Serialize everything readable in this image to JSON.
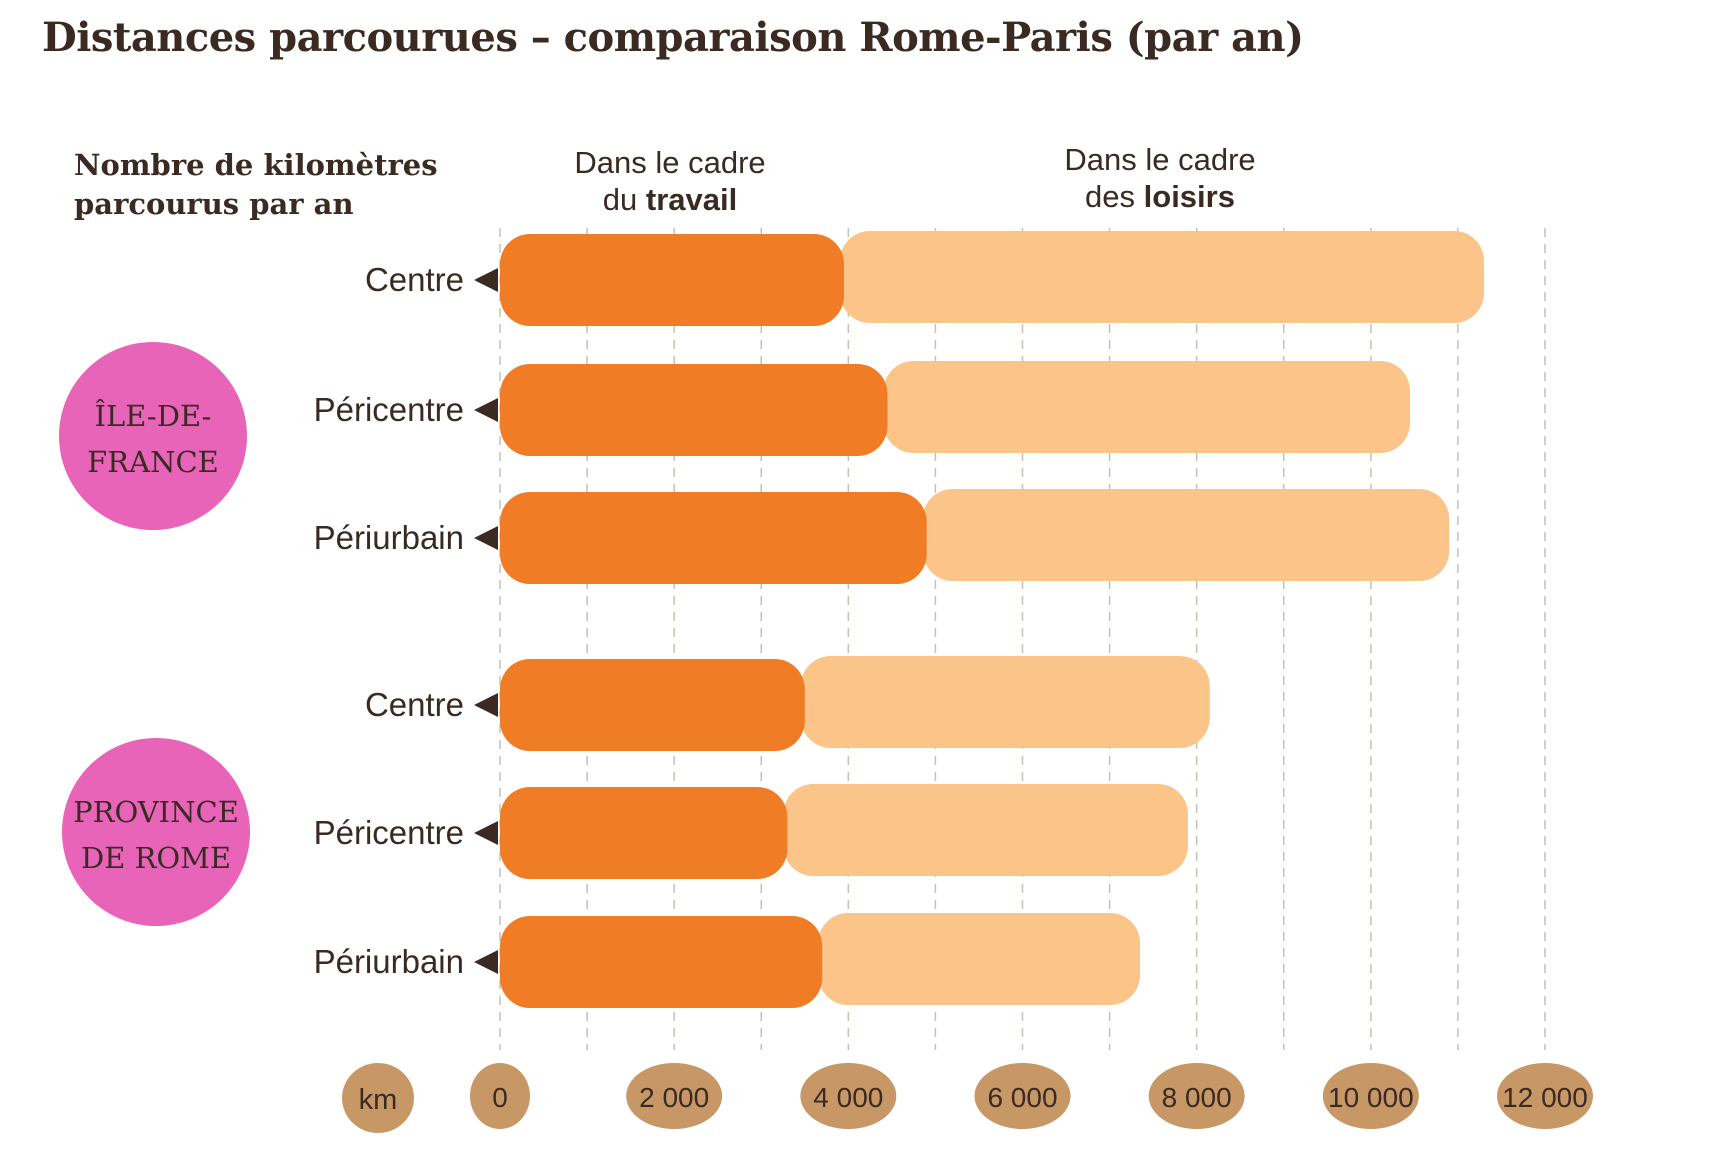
{
  "title": "Distances parcourues – comparaison Rome-Paris (par an)",
  "ylabel_lines": [
    "Nombre de kilomètres",
    "parcourus par an"
  ],
  "headers": {
    "work": {
      "line1": "Dans le cadre",
      "line2_prefix": "du ",
      "line2_bold": "travail"
    },
    "leisure": {
      "line1": "Dans le cadre",
      "line2_prefix": "des ",
      "line2_bold": "loisirs"
    }
  },
  "colors": {
    "work": "#f07d25",
    "leisure": "#fbc58a",
    "region_circle": "#e864b8",
    "axis_pill": "#c79766",
    "text": "#3a2a22",
    "gridline": "#c9bfb4"
  },
  "chart_data": {
    "type": "bar",
    "orientation": "horizontal",
    "stacked": true,
    "title": "Distances parcourues – comparaison Rome-Paris (par an)",
    "ylabel": "Nombre de kilomètres parcourus par an",
    "unit": "km",
    "xlim": [
      0,
      12000
    ],
    "xticks": [
      0,
      2000,
      4000,
      6000,
      8000,
      10000,
      12000
    ],
    "xtick_labels": [
      "0",
      "2 000",
      "4 000",
      "6 000",
      "8 000",
      "10 000",
      "12 000"
    ],
    "gridlines": "vertical dashed every 1000",
    "groups": [
      {
        "name": "ÎLE-DE-FRANCE",
        "name_lines": [
          "ÎLE-DE-",
          "FRANCE"
        ],
        "categories": [
          "Centre",
          "Péricentre",
          "Périurbain"
        ],
        "series": [
          {
            "name": "Dans le cadre du travail",
            "values": [
              3950,
              4450,
              4900
            ]
          },
          {
            "name": "Dans le cadre des loisirs",
            "values": [
              7350,
              6000,
              6000
            ]
          }
        ]
      },
      {
        "name": "PROVINCE DE ROME",
        "name_lines": [
          "PROVINCE",
          "DE ROME"
        ],
        "categories": [
          "Centre",
          "Péricentre",
          "Périurbain"
        ],
        "series": [
          {
            "name": "Dans le cadre du travail",
            "values": [
              3500,
              3300,
              3700
            ]
          },
          {
            "name": "Dans le cadre des loisirs",
            "values": [
              4650,
              4600,
              3650
            ]
          }
        ]
      }
    ]
  }
}
